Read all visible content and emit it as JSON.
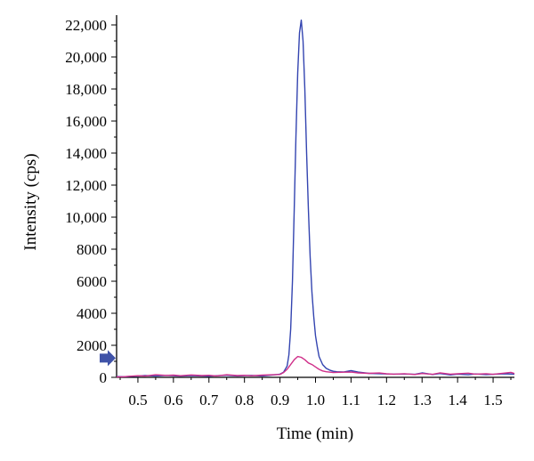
{
  "chart_data": {
    "type": "line",
    "title": "",
    "xlabel": "Time (min)",
    "ylabel": "Intensity (cps)",
    "xlim": [
      0.44,
      1.56
    ],
    "ylim": [
      0,
      22500
    ],
    "x_ticks": [
      0.5,
      0.6,
      0.7,
      0.8,
      0.9,
      1.0,
      1.1,
      1.2,
      1.3,
      1.4,
      1.5
    ],
    "x_tick_labels": [
      "0.5",
      "0.6",
      "0.7",
      "0.8",
      "0.9",
      "1.0",
      "1.1",
      "1.2",
      "1.3",
      "1.4",
      "1.5"
    ],
    "y_ticks": [
      0,
      2000,
      4000,
      6000,
      8000,
      10000,
      12000,
      14000,
      16000,
      18000,
      20000,
      22000
    ],
    "y_tick_labels": [
      "0",
      "2000",
      "4000",
      "6000",
      "8000",
      "10,000",
      "12,000",
      "14,000",
      "16,000",
      "18,000",
      "20,000",
      "22,000"
    ],
    "grid": false,
    "legend": "none",
    "marker_y": 1200,
    "marker_color": "#3f52a8",
    "series": [
      {
        "color": "#3344b0",
        "x": [
          0.44,
          0.46,
          0.48,
          0.5,
          0.52,
          0.55,
          0.58,
          0.6,
          0.62,
          0.65,
          0.68,
          0.7,
          0.72,
          0.75,
          0.78,
          0.8,
          0.82,
          0.85,
          0.88,
          0.9,
          0.91,
          0.92,
          0.925,
          0.93,
          0.935,
          0.94,
          0.945,
          0.95,
          0.955,
          0.96,
          0.965,
          0.97,
          0.975,
          0.98,
          0.985,
          0.99,
          0.995,
          1.0,
          1.005,
          1.01,
          1.02,
          1.03,
          1.04,
          1.05,
          1.06,
          1.08,
          1.1,
          1.12,
          1.15,
          1.18,
          1.2,
          1.22,
          1.25,
          1.28,
          1.3,
          1.33,
          1.35,
          1.38,
          1.4,
          1.43,
          1.45,
          1.48,
          1.5,
          1.53,
          1.56
        ],
        "y": [
          50,
          40,
          60,
          80,
          110,
          90,
          120,
          100,
          80,
          110,
          90,
          70,
          100,
          130,
          90,
          110,
          120,
          90,
          150,
          200,
          320,
          700,
          1400,
          3000,
          6000,
          10500,
          15000,
          19000,
          21500,
          22300,
          21000,
          18000,
          14000,
          10500,
          7500,
          5300,
          3800,
          2600,
          1900,
          1300,
          800,
          560,
          450,
          380,
          350,
          340,
          420,
          330,
          250,
          230,
          210,
          200,
          210,
          190,
          280,
          180,
          240,
          150,
          200,
          160,
          210,
          170,
          190,
          220,
          200
        ]
      },
      {
        "color": "#d0308a",
        "x": [
          0.44,
          0.46,
          0.48,
          0.5,
          0.52,
          0.55,
          0.58,
          0.6,
          0.62,
          0.65,
          0.68,
          0.7,
          0.72,
          0.75,
          0.78,
          0.8,
          0.82,
          0.85,
          0.88,
          0.9,
          0.91,
          0.92,
          0.93,
          0.94,
          0.95,
          0.96,
          0.97,
          0.98,
          0.99,
          1.0,
          1.01,
          1.02,
          1.03,
          1.05,
          1.08,
          1.1,
          1.12,
          1.15,
          1.18,
          1.2,
          1.22,
          1.25,
          1.28,
          1.3,
          1.33,
          1.35,
          1.38,
          1.4,
          1.43,
          1.45,
          1.48,
          1.5,
          1.53,
          1.55,
          1.56
        ],
        "y": [
          30,
          40,
          70,
          100,
          80,
          160,
          120,
          140,
          100,
          150,
          110,
          130,
          90,
          160,
          110,
          130,
          100,
          140,
          160,
          180,
          300,
          500,
          800,
          1100,
          1300,
          1250,
          1100,
          900,
          800,
          650,
          500,
          400,
          350,
          300,
          320,
          330,
          280,
          250,
          270,
          220,
          200,
          230,
          180,
          240,
          190,
          280,
          200,
          220,
          260,
          200,
          230,
          190,
          260,
          310,
          240
        ]
      }
    ]
  }
}
